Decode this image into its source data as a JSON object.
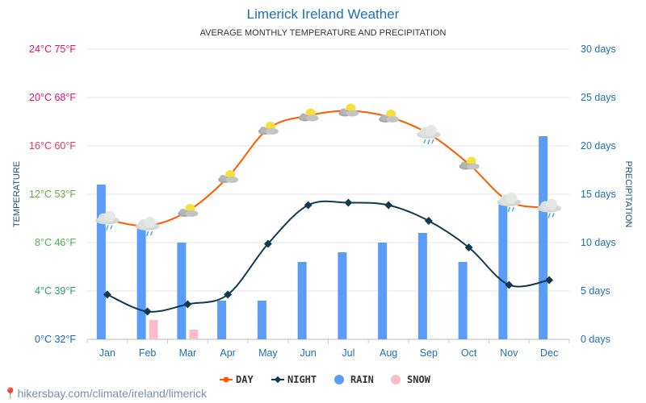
{
  "chart_data": {
    "type": "bar+line",
    "title": "Limerick Ireland Weather",
    "subtitle": "AVERAGE MONTHLY TEMPERATURE AND PRECIPITATION",
    "categories": [
      "Jan",
      "Feb",
      "Mar",
      "Apr",
      "May",
      "Jun",
      "Jul",
      "Aug",
      "Sep",
      "Oct",
      "Nov",
      "Dec"
    ],
    "left_axis": {
      "label": "TEMPERATURE",
      "range": [
        0,
        24
      ],
      "unit": "°C",
      "ticks": [
        {
          "value": 0,
          "label": "0°C 32°F",
          "color": "#1565c0"
        },
        {
          "value": 4,
          "label": "4°C 39°F",
          "color": "#2a9d6a"
        },
        {
          "value": 8,
          "label": "8°C 46°F",
          "color": "#4caf50"
        },
        {
          "value": 12,
          "label": "12°C 53°F",
          "color": "#5aae3c"
        },
        {
          "value": 16,
          "label": "16°C 60°F",
          "color": "#e0355f"
        },
        {
          "value": 20,
          "label": "20°C 68°F",
          "color": "#e0106a"
        },
        {
          "value": 24,
          "label": "24°C 75°F",
          "color": "#e0106a"
        }
      ]
    },
    "right_axis": {
      "label": "PRECIPITATION",
      "range": [
        0,
        30
      ],
      "color": "#1e6fb5",
      "ticks": [
        {
          "value": 0,
          "label": "0 days"
        },
        {
          "value": 5,
          "label": "5 days"
        },
        {
          "value": 10,
          "label": "10 days"
        },
        {
          "value": 15,
          "label": "15 days"
        },
        {
          "value": 20,
          "label": "20 days"
        },
        {
          "value": 25,
          "label": "25 days"
        },
        {
          "value": 30,
          "label": "30 days"
        }
      ]
    },
    "grid": true,
    "legend_position": "bottom",
    "series": [
      {
        "name": "DAY",
        "type": "line",
        "axis": "left",
        "color": "#ff5a00",
        "values": [
          9.9,
          9.4,
          10.6,
          13.4,
          17.4,
          18.5,
          18.9,
          18.4,
          17.0,
          14.5,
          11.4,
          10.9
        ],
        "icons": [
          "rain-cloud",
          "rain-cloud",
          "sun-cloud",
          "sun-cloud",
          "sun-cloud",
          "sun-cloud",
          "sun-cloud",
          "sun-cloud",
          "rain-cloud",
          "sun-cloud",
          "rain-cloud",
          "rain-cloud"
        ]
      },
      {
        "name": "NIGHT",
        "type": "line",
        "axis": "left",
        "color": "#0f3a4f",
        "values": [
          3.7,
          2.3,
          2.9,
          3.7,
          7.9,
          11.1,
          11.3,
          11.1,
          9.8,
          7.6,
          4.5,
          4.9
        ]
      },
      {
        "name": "RAIN",
        "type": "bar",
        "axis": "right",
        "color": "#5b9cf8",
        "values": [
          16,
          11.5,
          10,
          4,
          4,
          8,
          9,
          10,
          11,
          8,
          14,
          21
        ]
      },
      {
        "name": "SNOW",
        "type": "bar",
        "axis": "right",
        "color": "#ffbcc8",
        "values": [
          0,
          2,
          1,
          0,
          0,
          0,
          0,
          0,
          0,
          0,
          0,
          0
        ]
      }
    ]
  },
  "footer": "hikersbay.com/climate/ireland/limerick"
}
